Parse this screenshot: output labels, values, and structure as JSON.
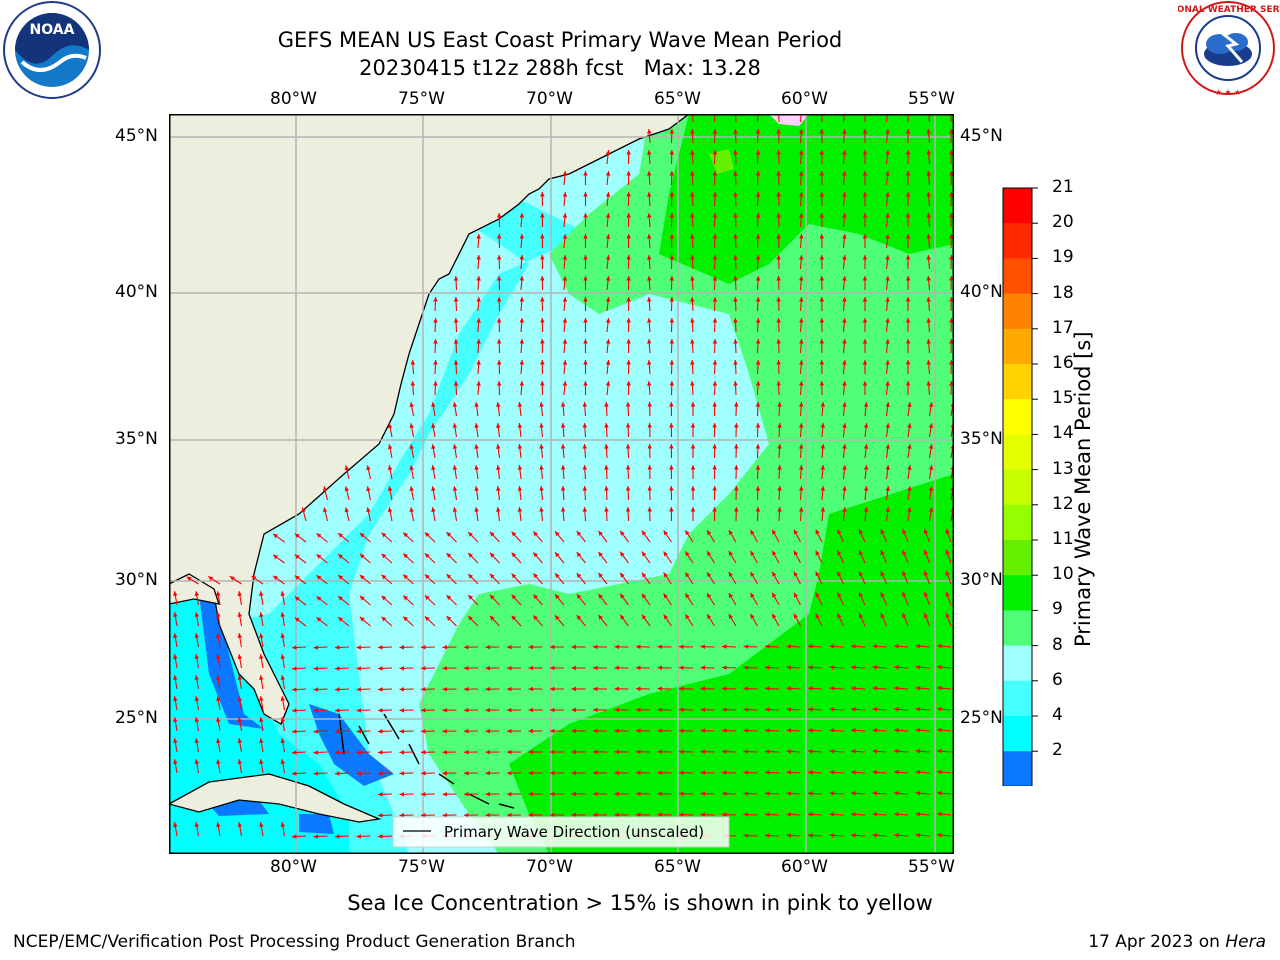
{
  "title": {
    "line1": "GEFS MEAN US East Coast Primary Wave Mean Period",
    "line2": "20230415 t12z 288h fcst   Max: 13.28"
  },
  "map": {
    "lon_labels": [
      "80°W",
      "75°W",
      "70°W",
      "65°W",
      "60°W",
      "55°W"
    ],
    "lat_labels": [
      "45°N",
      "40°N",
      "35°N",
      "30°N",
      "25°N"
    ],
    "legend_label": "Primary Wave Direction (unscaled)",
    "colors": {
      "land": "#eeeede",
      "period_2_4": "#0a78ff",
      "period_4_6": "#00ffff",
      "period_6_8": "#46ffff",
      "period_8_9": "#a0ffff",
      "period_9_10": "#50ff78",
      "period_10_11": "#00f000",
      "arrow": "#ff0000"
    }
  },
  "colorbar": {
    "title": "Primary Wave Mean Period [s]",
    "ticks": [
      "21",
      "20",
      "19",
      "18",
      "17",
      "16",
      "15",
      "14",
      "13",
      "12",
      "11",
      "10",
      "9",
      "8",
      "6",
      "4",
      "2"
    ],
    "colors": [
      "#ff0000",
      "#ff2800",
      "#ff5000",
      "#ff8200",
      "#ffaa00",
      "#ffd200",
      "#ffff00",
      "#e6ff00",
      "#c8ff00",
      "#96ff00",
      "#64f000",
      "#00f000",
      "#50ff78",
      "#a0ffff",
      "#46ffff",
      "#00ffff",
      "#0a78ff"
    ],
    "extend_color": "#0000ff"
  },
  "footer": {
    "subtitle": "Sea Ice Concentration > 15% is shown in pink to yellow",
    "left": "NCEP/EMC/Verification Post Processing Product Generation Branch",
    "right_date": "17 Apr 2023 on ",
    "right_machine": "Hera"
  },
  "logos": {
    "noaa": "NOAA",
    "nws": "NATIONAL WEATHER SERVICE"
  }
}
